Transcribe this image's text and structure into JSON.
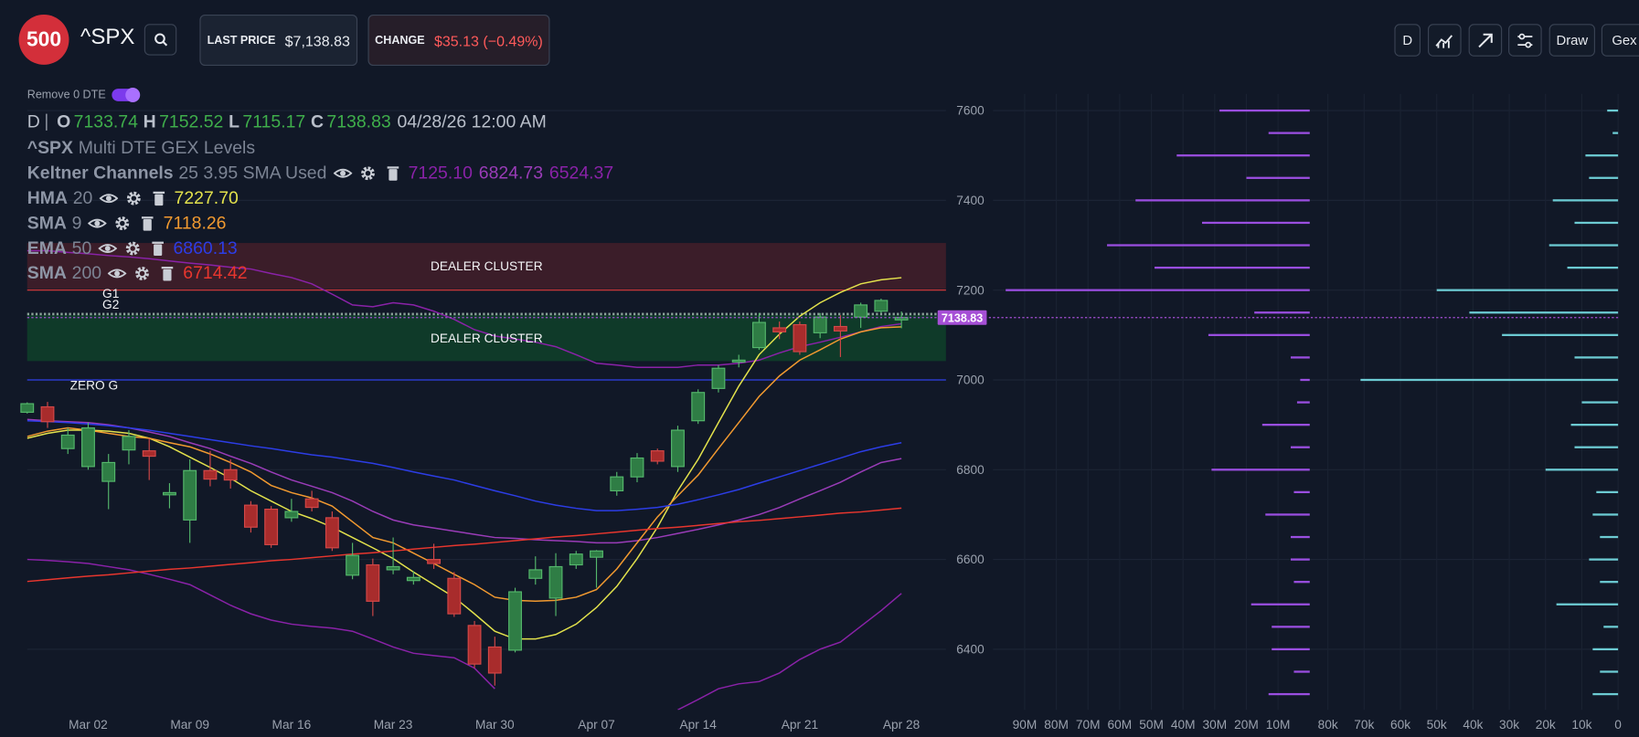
{
  "header": {
    "logo": "500",
    "symbol": "^SPX",
    "last_price_label": "LAST PRICE",
    "last_price": "$7,138.83",
    "change_label": "CHANGE",
    "change": "$35.13 (−0.49%)"
  },
  "toolbar": {
    "timeframe": "D",
    "draw": "Draw",
    "gex": "Gex"
  },
  "toggle": "Remove 0 DTE",
  "chart_data": [
    {
      "type": "candlestick",
      "study": "Multi DTE GEX Levels",
      "legend_labels": [
        "O",
        "H",
        "L",
        "C"
      ],
      "legend_date": "04/28/26 12:00 AM",
      "categories": [
        null,
        null,
        null,
        "Mar 02",
        null,
        null,
        null,
        null,
        "Mar 09",
        null,
        null,
        null,
        null,
        "Mar 16",
        null,
        null,
        null,
        null,
        "Mar 23",
        null,
        null,
        null,
        null,
        "Mar 30",
        null,
        null,
        null,
        null,
        "Apr 07",
        null,
        null,
        null,
        null,
        "Apr 14",
        null,
        null,
        null,
        null,
        "Apr 21",
        null,
        null,
        null,
        null,
        "Apr 28"
      ],
      "open": [
        6928,
        6940,
        6847,
        6807,
        6774,
        6844,
        6842,
        6744,
        6688,
        6798,
        6800,
        6721,
        6712,
        6693,
        6735,
        6693,
        6565,
        6588,
        6577,
        6553,
        6600,
        6558,
        6453,
        6405,
        6398,
        6558,
        6514,
        6588,
        6605,
        6753,
        6784,
        6842,
        6807,
        6909,
        6981,
        7040,
        7072,
        7116,
        7123,
        7105,
        7119,
        7140,
        7153,
        7133.74
      ],
      "high": [
        6950,
        6951,
        6893,
        6905,
        6835,
        6888,
        6870,
        6770,
        6823,
        6842,
        6823,
        6730,
        6719,
        6735,
        6753,
        6707,
        6637,
        6602,
        6649,
        6574,
        6635,
        6572,
        6463,
        6428,
        6537,
        6607,
        6614,
        6619,
        6621,
        6795,
        6837,
        6847,
        6898,
        6979,
        7033,
        7056,
        7149,
        7130,
        7130,
        7149,
        7144,
        7172,
        7181,
        7152.52
      ],
      "low": [
        6925,
        6893,
        6835,
        6800,
        6712,
        6812,
        6777,
        6714,
        6637,
        6763,
        6758,
        6660,
        6626,
        6684,
        6707,
        6619,
        6556,
        6474,
        6567,
        6544,
        6579,
        6472,
        6358,
        6319,
        6393,
        6544,
        6474,
        6579,
        6537,
        6742,
        6772,
        6812,
        6795,
        6902,
        6972,
        7028,
        7067,
        7091,
        7056,
        7093,
        7051,
        7116,
        7149,
        7115.17
      ],
      "close": [
        6947,
        6907,
        6877,
        6893,
        6816,
        6874,
        6830,
        6749,
        6798,
        6779,
        6777,
        6672,
        6633,
        6707,
        6716,
        6626,
        6609,
        6507,
        6584,
        6560,
        6591,
        6479,
        6367,
        6347,
        6528,
        6577,
        6584,
        6612,
        6619,
        6784,
        6826,
        6819,
        6888,
        6972,
        7026,
        7044,
        7128,
        7107,
        7063,
        7140,
        7109,
        7167,
        7177,
        7138.83
      ],
      "up_color": "#2f7d45",
      "down_color": "#a82c2c",
      "ylim": [
        6265,
        7637
      ],
      "yticks": [
        6400,
        6600,
        6800,
        7000,
        7200,
        7400,
        7600
      ],
      "grid": true,
      "price_line": 7138.83,
      "price_color": "#a64fd6",
      "zones": [
        {
          "label": "DEALER CLUSTER",
          "from": 7202,
          "to": 7305,
          "color": "#3b1d29"
        },
        {
          "label": "DEALER CLUSTER",
          "from": 7042,
          "to": 7144,
          "color": "#0f3a29"
        }
      ],
      "levels": [
        {
          "value": 7200,
          "color": "#e0393a"
        },
        {
          "label": "G1",
          "value": 7148,
          "color": "#9bb7a8"
        },
        {
          "label": "G2",
          "value": 7145,
          "color": "#9bb7a8"
        },
        {
          "label": "ZERO G",
          "value": 7000,
          "color": "#2f3fe6"
        }
      ],
      "indicators": [
        {
          "name": "Keltner Channels",
          "params": "25 3.95 SMA Used",
          "lines": [
            {
              "color": "#8a22a8",
              "values": [
                7288,
                7288,
                7284,
                7281,
                7277,
                7274,
                7270,
                7265,
                7260,
                7256,
                7251,
                7247,
                7237,
                7228,
                7214,
                7191,
                7167,
                7163,
                7172,
                7167,
                7153,
                7135,
                7112,
                7098,
                7091,
                7084,
                7074,
                7056,
                7037,
                7033,
                7028,
                7028,
                7028,
                7033,
                7033,
                7037,
                7044,
                7060,
                7074,
                7084,
                7095,
                7107,
                7119,
                7125.1
              ],
              "value_labels": [
                null,
                null,
                null,
                null,
                null,
                null,
                null,
                null,
                null,
                null,
                null,
                null,
                null,
                null,
                null,
                null,
                null,
                null,
                null,
                null,
                null,
                null,
                null,
                null,
                null,
                null,
                null,
                null,
                null,
                null,
                null,
                null,
                null,
                null,
                null,
                null,
                null,
                null,
                null,
                null,
                null,
                null,
                null,
                "7125.10"
              ]
            },
            {
              "color": "#9a3cb8",
              "values": [
                6912,
                6909,
                6907,
                6905,
                6900,
                6893,
                6884,
                6874,
                6860,
                6847,
                6830,
                6814,
                6795,
                6777,
                6763,
                6749,
                6730,
                6707,
                6688,
                6677,
                6670,
                6663,
                6656,
                6649,
                6647,
                6644,
                6642,
                6640,
                6637,
                6637,
                6642,
                6649,
                6658,
                6667,
                6677,
                6688,
                6700,
                6716,
                6735,
                6753,
                6772,
                6795,
                6816,
                6824.73
              ]
            },
            {
              "color": "#8a22a8",
              "values": [
                6600,
                6598,
                6595,
                6591,
                6584,
                6577,
                6567,
                6556,
                6544,
                6521,
                6498,
                6479,
                6465,
                6456,
                6451,
                6447,
                6440,
                6423,
                6405,
                6391,
                6386,
                6381,
                6358,
                6312,
                null,
                null,
                null,
                null,
                null,
                null,
                null,
                null,
                6265,
                6288,
                6312,
                6323,
                6328,
                6347,
                6377,
                6400,
                6416,
                6451,
                6486,
                6524.37
              ]
            }
          ]
        },
        {
          "name": "HMA",
          "params": "20",
          "lines": [
            {
              "color": "#e3e24c",
              "values": [
                6870,
                6881,
                6888,
                6888,
                6886,
                6881,
                6870,
                6851,
                6828,
                6805,
                6781,
                6753,
                6730,
                6707,
                6691,
                6672,
                6649,
                6626,
                6602,
                6572,
                6544,
                6516,
                6479,
                6440,
                6423,
                6423,
                6433,
                6456,
                6493,
                6540,
                6602,
                6672,
                6753,
                6823,
                6905,
                6986,
                7056,
                7102,
                7142,
                7172,
                7195,
                7214,
                7223,
                7227.7
              ],
              "value_labels": [
                null,
                null,
                null,
                null,
                null,
                null,
                null,
                null,
                null,
                null,
                null,
                null,
                null,
                null,
                null,
                null,
                null,
                null,
                null,
                null,
                null,
                null,
                null,
                null,
                null,
                null,
                null,
                null,
                null,
                null,
                null,
                null,
                null,
                null,
                null,
                null,
                null,
                null,
                null,
                null,
                null,
                null,
                null,
                "7227.70"
              ]
            }
          ]
        },
        {
          "name": "SMA",
          "params": "9",
          "lines": [
            {
              "color": "#f29a30",
              "values": [
                6874,
                6886,
                6893,
                6888,
                6881,
                6874,
                6870,
                6860,
                6851,
                6835,
                6816,
                6795,
                6765,
                6749,
                6737,
                6719,
                6684,
                6649,
                6637,
                6614,
                6591,
                6567,
                6544,
                6516,
                6509,
                6507,
                6509,
                6516,
                6533,
                6579,
                6637,
                6695,
                6742,
                6788,
                6847,
                6905,
                6963,
                7009,
                7044,
                7067,
                7091,
                7107,
                7116,
                7118.26
              ]
            }
          ]
        },
        {
          "name": "EMA",
          "params": "50",
          "lines": [
            {
              "color": "#2c3de6",
              "values": [
                6909,
                6907,
                6905,
                6902,
                6898,
                6893,
                6888,
                6881,
                6874,
                6867,
                6860,
                6853,
                6847,
                6840,
                6833,
                6828,
                6821,
                6814,
                6805,
                6795,
                6786,
                6777,
                6765,
                6753,
                6742,
                6730,
                6721,
                6714,
                6709,
                6709,
                6712,
                6716,
                6723,
                6733,
                6744,
                6756,
                6770,
                6784,
                6798,
                6812,
                6826,
                6840,
                6851,
                6860.13
              ]
            }
          ]
        },
        {
          "name": "SMA",
          "params": "200",
          "lines": [
            {
              "color": "#e8362e",
              "values": [
                6551,
                6555,
                6559,
                6563,
                6566,
                6570,
                6574,
                6578,
                6581,
                6585,
                6589,
                6593,
                6597,
                6600,
                6604,
                6608,
                6612,
                6615,
                6619,
                6623,
                6627,
                6631,
                6634,
                6638,
                6642,
                6646,
                6650,
                6653,
                6657,
                6661,
                6665,
                6669,
                6672,
                6676,
                6680,
                6684,
                6687,
                6691,
                6695,
                6699,
                6703,
                6706,
                6710,
                6714.42
              ]
            }
          ]
        }
      ]
    },
    {
      "type": "bar",
      "orientation": "horizontal",
      "color": "#9a4ee0",
      "y": [
        6300,
        6350,
        6400,
        6450,
        6500,
        6550,
        6600,
        6650,
        6700,
        6750,
        6800,
        6850,
        6900,
        6950,
        7000,
        7050,
        7100,
        7150,
        7200,
        7250,
        7300,
        7350,
        7400,
        7450,
        7500,
        7550,
        7600
      ],
      "values": [
        13000000,
        5000000,
        12000000,
        12000000,
        18500000,
        5000000,
        6000000,
        6000000,
        14000000,
        5000000,
        31000000,
        6000000,
        15000000,
        4000000,
        3000000,
        6000000,
        32000000,
        17500000,
        96000000,
        49000000,
        64000000,
        34000000,
        55000000,
        20000000,
        42000000,
        13000000,
        28500000
      ],
      "xlim": [
        100000000,
        0
      ],
      "ylim": [
        6265,
        7637
      ],
      "xticks": [
        {
          "value": 90000000,
          "label": "90M"
        },
        {
          "value": 80000000,
          "label": "80M"
        },
        {
          "value": 70000000,
          "label": "70M"
        },
        {
          "value": 60000000,
          "label": "60M"
        },
        {
          "value": 50000000,
          "label": "50M"
        },
        {
          "value": 40000000,
          "label": "40M"
        },
        {
          "value": 30000000,
          "label": "30M"
        },
        {
          "value": 20000000,
          "label": "20M"
        },
        {
          "value": 10000000,
          "label": "10M"
        }
      ]
    },
    {
      "type": "bar",
      "orientation": "horizontal",
      "color": "#6ccbd3",
      "y": [
        6300,
        6350,
        6400,
        6450,
        6500,
        6550,
        6600,
        6650,
        6700,
        6750,
        6800,
        6850,
        6900,
        6950,
        7000,
        7050,
        7100,
        7150,
        7200,
        7250,
        7300,
        7350,
        7400,
        7450,
        7500,
        7550,
        7600
      ],
      "values": [
        7000,
        5000,
        7000,
        4000,
        17000,
        5000,
        8000,
        5000,
        7000,
        6000,
        20000,
        12000,
        13000,
        10000,
        71000,
        12000,
        32000,
        41000,
        50000,
        14000,
        19000,
        12000,
        18000,
        8000,
        9000,
        1500,
        3000
      ],
      "xlim": [
        85000,
        0
      ],
      "ylim": [
        6265,
        7637
      ],
      "xticks": [
        {
          "value": 80000,
          "label": "80k"
        },
        {
          "value": 70000,
          "label": "70k"
        },
        {
          "value": 60000,
          "label": "60k"
        },
        {
          "value": 50000,
          "label": "50k"
        },
        {
          "value": 40000,
          "label": "40k"
        },
        {
          "value": 30000,
          "label": "30k"
        },
        {
          "value": 20000,
          "label": "20k"
        },
        {
          "value": 10000,
          "label": "10k"
        },
        0
      ]
    }
  ]
}
